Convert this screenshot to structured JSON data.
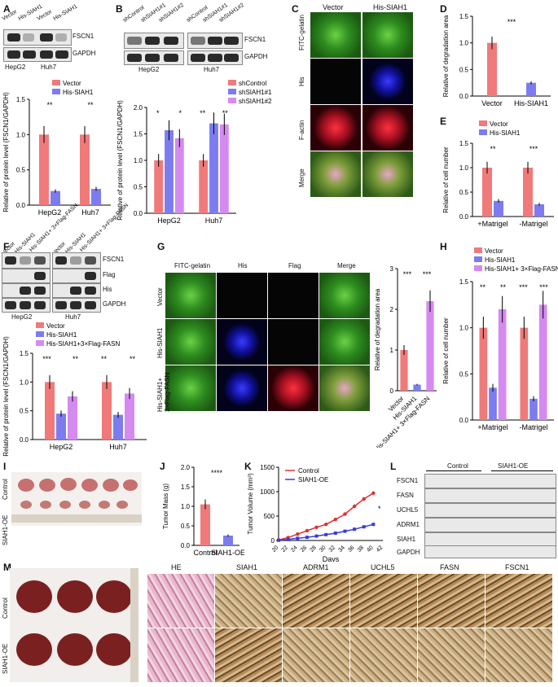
{
  "panel_labels": [
    "A",
    "B",
    "C",
    "D",
    "E",
    "F",
    "G",
    "H",
    "I",
    "J",
    "K",
    "L",
    "M"
  ],
  "A": {
    "blot_lanes_hepg2": [
      "Vector",
      "His-SIAH1"
    ],
    "blot_lanes_huh7": [
      "Vector",
      "His-SIAH1"
    ],
    "blot_rows": [
      "FSCN1",
      "GAPDH"
    ],
    "cell_lines": [
      "HepG2",
      "Huh7"
    ],
    "legend": [
      "Vector",
      "His-SIAH1"
    ],
    "ylabel": "Relative of protein level (FSCN1/GAPDH)",
    "sig": [
      "**",
      "**"
    ],
    "yticks": [
      "0.0",
      "0.5",
      "1.0",
      "1.5"
    ]
  },
  "B": {
    "blot_lanes": [
      "shControl",
      "shSIAH1#1",
      "shSIAH1#2",
      "shControl",
      "shSIAH1#1",
      "shSIAH1#2"
    ],
    "blot_rows": [
      "FSCN1",
      "GAPDH"
    ],
    "cell_lines": [
      "HepG2",
      "Huh7"
    ],
    "legend": [
      "shControl",
      "shSIAH1#1",
      "shSIAH1#2"
    ],
    "ylabel": "Relative of protein level (FSCN1/GAPDH)",
    "sig": [
      "*",
      "*",
      "**",
      "**"
    ],
    "yticks": [
      "0.0",
      "0.5",
      "1.0",
      "1.5",
      "2.0"
    ]
  },
  "C": {
    "cols": [
      "Vector",
      "His-SIAH1"
    ],
    "rows": [
      "FITC-gelatin",
      "His",
      "F-actin",
      "Merge"
    ]
  },
  "D": {
    "ylabel": "Relative of degradation area",
    "xticks": [
      "Vector",
      "His-SIAH1"
    ],
    "sig": "***",
    "yticks": [
      "0.0",
      "0.5",
      "1.0",
      "1.5"
    ]
  },
  "E": {
    "legend": [
      "Vector",
      "His-SIAH1"
    ],
    "ylabel": "Relative of cell number",
    "xticks": [
      "+Matrigel",
      "-Matrigel"
    ],
    "sig": [
      "**",
      "***"
    ],
    "yticks": [
      "0.0",
      "0.5",
      "1.0",
      "1.5"
    ]
  },
  "F": {
    "blot_lanes": [
      "Vector",
      "His-SIAH1",
      "His-SIAH1+ 3×Flag-FASN",
      "Vector",
      "His-SIAH1",
      "His-SIAH1+ 3×Flag-FASN"
    ],
    "blot_rows": [
      "FSCN1",
      "Flag",
      "His",
      "GAPDH"
    ],
    "cell_lines": [
      "HepG2",
      "Huh7"
    ],
    "legend": [
      "Vector",
      "His-SIAH1",
      "His-SIAH1+3×Flag-FASN"
    ],
    "ylabel": "Relative of protein level (FSCN1/GAPDH)",
    "sig": [
      "***",
      "**",
      "**",
      "**"
    ],
    "yticks": [
      "0.0",
      "0.5",
      "1.0",
      "1.5"
    ]
  },
  "G": {
    "cols": [
      "FITC-gelatin",
      "His",
      "Flag",
      "Merge"
    ],
    "rows": [
      "Vector",
      "His-SIAH1",
      "His-SIAH1+ 3×Flag-FASN"
    ],
    "ylabel": "Relative of degradation area",
    "xticks": [
      "Vector",
      "His-SIAH1",
      "His-SIAH1+ 3×Flag-FASN"
    ],
    "sig": [
      "***",
      "***"
    ],
    "yticks": [
      "0",
      "1",
      "2",
      "3"
    ]
  },
  "H": {
    "legend": [
      "Vector",
      "His-SIAH1",
      "His-SIAH1+ 3×Flag-FASN"
    ],
    "ylabel": "Relative of cell number",
    "xticks": [
      "+Matrigel",
      "-Matrigel"
    ],
    "sig": [
      "**",
      "**",
      "***",
      "***"
    ],
    "yticks": [
      "0.0",
      "0.5",
      "1.0",
      "1.5"
    ]
  },
  "I": {
    "rows": [
      "Control",
      "SIAH1-OE"
    ]
  },
  "J": {
    "ylabel": "Tumor Mass (g)",
    "xticks": [
      "Control",
      "SIAH1-OE"
    ],
    "sig": "****",
    "yticks": [
      "0.0",
      "0.5",
      "1.0",
      "1.5",
      "2.0"
    ]
  },
  "K": {
    "ylabel": "Tumor Volume (mm³)",
    "xlabel": "Days",
    "legend": [
      "Control",
      "SIAH1-OE"
    ],
    "sig": "*",
    "yticks": [
      "0",
      "500",
      "1000",
      "1500"
    ],
    "xticks": [
      "20",
      "22",
      "24",
      "26",
      "28",
      "30",
      "32",
      "34",
      "36",
      "38",
      "40",
      "42"
    ]
  },
  "L": {
    "groups": [
      "Control",
      "SIAH1-OE"
    ],
    "rows": [
      "FSCN1",
      "FASN",
      "UCHL5",
      "ADRM1",
      "SIAH1",
      "GAPDH"
    ]
  },
  "M": {
    "rows": [
      "Control",
      "SIAH1-OE"
    ],
    "cols": [
      "HE",
      "SIAH1",
      "ADRM1",
      "UCHL5",
      "FASN",
      "FSCN1"
    ]
  },
  "colors": {
    "vector": "#f07a7a",
    "his_siah1": "#7c7cf0",
    "fasn": "#d58af0",
    "control_line": "#e03030",
    "oe_line": "#3a3ae0"
  },
  "chart_data": [
    {
      "id": "A",
      "type": "bar",
      "categories": [
        "HepG2",
        "Huh7"
      ],
      "series": [
        {
          "name": "Vector",
          "values": [
            1.0,
            1.0
          ]
        },
        {
          "name": "His-SIAH1",
          "values": [
            0.2,
            0.23
          ]
        }
      ],
      "ylim": [
        0,
        1.5
      ],
      "ylabel": "Relative of protein level (FSCN1/GAPDH)"
    },
    {
      "id": "B",
      "type": "bar",
      "categories": [
        "HepG2",
        "Huh7"
      ],
      "series": [
        {
          "name": "shControl",
          "values": [
            1.0,
            1.0
          ]
        },
        {
          "name": "shSIAH1#1",
          "values": [
            1.57,
            1.7
          ]
        },
        {
          "name": "shSIAH1#2",
          "values": [
            1.42,
            1.68
          ]
        }
      ],
      "ylim": [
        0,
        2.0
      ],
      "ylabel": "Relative of protein level (FSCN1/GAPDH)"
    },
    {
      "id": "D",
      "type": "bar",
      "categories": [
        "Vector",
        "His-SIAH1"
      ],
      "values": [
        1.0,
        0.25
      ],
      "ylim": [
        0,
        1.5
      ],
      "ylabel": "Relative of degradation area"
    },
    {
      "id": "E",
      "type": "bar",
      "categories": [
        "+Matrigel",
        "-Matrigel"
      ],
      "series": [
        {
          "name": "Vector",
          "values": [
            1.0,
            1.0
          ]
        },
        {
          "name": "His-SIAH1",
          "values": [
            0.32,
            0.25
          ]
        }
      ],
      "ylim": [
        0,
        1.5
      ],
      "ylabel": "Relative of cell number"
    },
    {
      "id": "F",
      "type": "bar",
      "categories": [
        "HepG2",
        "Huh7"
      ],
      "series": [
        {
          "name": "Vector",
          "values": [
            1.0,
            1.0
          ]
        },
        {
          "name": "His-SIAH1",
          "values": [
            0.45,
            0.43
          ]
        },
        {
          "name": "His-SIAH1+3×Flag-FASN",
          "values": [
            0.75,
            0.8
          ]
        }
      ],
      "ylim": [
        0,
        1.5
      ],
      "ylabel": "Relative of protein level (FSCN1/GAPDH)"
    },
    {
      "id": "G",
      "type": "bar",
      "categories": [
        "Vector",
        "His-SIAH1",
        "His-SIAH1+ 3×Flag-FASN"
      ],
      "values": [
        1.0,
        0.15,
        2.2
      ],
      "ylim": [
        0,
        3
      ],
      "ylabel": "Relative of degradation area"
    },
    {
      "id": "H",
      "type": "bar",
      "categories": [
        "+Matrigel",
        "-Matrigel"
      ],
      "series": [
        {
          "name": "Vector",
          "values": [
            1.0,
            1.0
          ]
        },
        {
          "name": "His-SIAH1",
          "values": [
            0.35,
            0.23
          ]
        },
        {
          "name": "His-SIAH1+ 3×Flag-FASN",
          "values": [
            1.2,
            1.25
          ]
        }
      ],
      "ylim": [
        0,
        1.5
      ],
      "ylabel": "Relative of cell number"
    },
    {
      "id": "J",
      "type": "bar",
      "categories": [
        "Control",
        "SIAH1-OE"
      ],
      "values": [
        1.05,
        0.25
      ],
      "ylim": [
        0,
        2.0
      ],
      "ylabel": "Tumor Mass (g)"
    },
    {
      "id": "K",
      "type": "line",
      "x": [
        20,
        22,
        24,
        26,
        28,
        30,
        32,
        34,
        36,
        38,
        40
      ],
      "series": [
        {
          "name": "Control",
          "values": [
            10,
            60,
            130,
            200,
            270,
            330,
            430,
            540,
            700,
            850,
            970
          ]
        },
        {
          "name": "SIAH1-OE",
          "values": [
            5,
            20,
            45,
            65,
            90,
            120,
            150,
            190,
            230,
            280,
            330
          ]
        }
      ],
      "ylim": [
        0,
        1500
      ],
      "xlim": [
        20,
        42
      ],
      "xlabel": "Days",
      "ylabel": "Tumor Volume (mm³)"
    }
  ]
}
